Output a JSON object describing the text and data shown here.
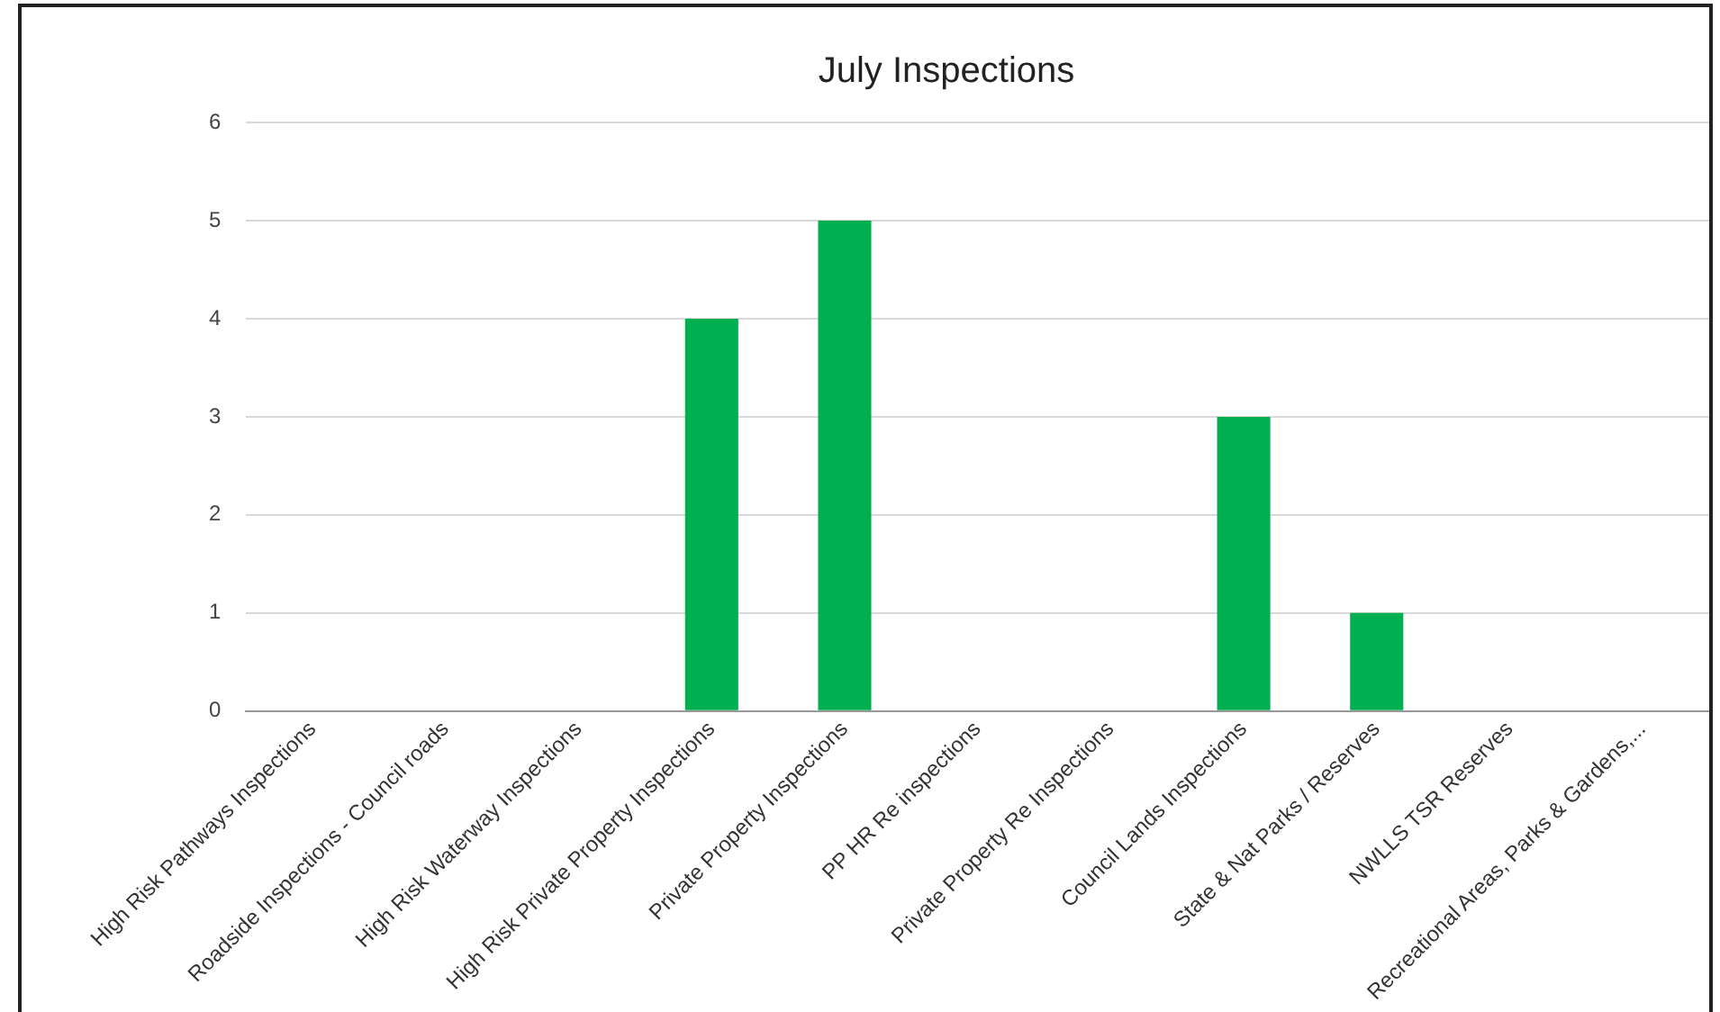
{
  "chart_data": {
    "type": "bar",
    "title": "July Inspections",
    "categories": [
      "High Risk Pathways Inspections",
      "Roadside Inspections - Council roads",
      "High Risk Waterway Inspections",
      "High Risk Private Property Inspections",
      "Private Property Inspections",
      "PP HR Re inspections",
      "Private Property Re Inspections",
      "Council Lands Inspections",
      "State & Nat Parks / Reserves",
      "NWLLS TSR Reserves",
      "Recreational Areas, Parks & Gardens,..."
    ],
    "values": [
      0,
      0,
      0,
      4,
      5,
      0,
      0,
      3,
      1,
      0,
      0
    ],
    "color": "#00b050",
    "ylim": [
      0,
      6
    ],
    "yticks": [
      0,
      1,
      2,
      3,
      4,
      5,
      6
    ],
    "grid": "y",
    "legend": false
  }
}
